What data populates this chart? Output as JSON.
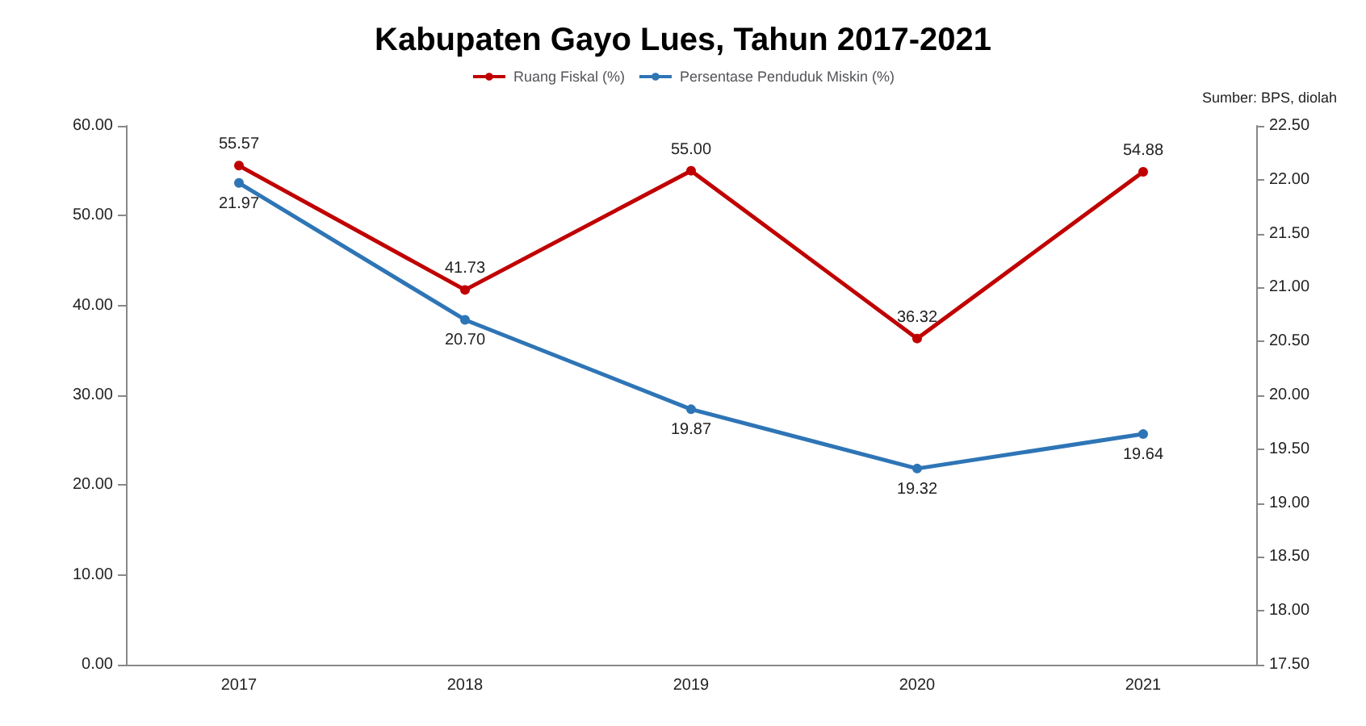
{
  "chart_data": {
    "type": "line",
    "title": "Kabupaten Gayo Lues, Tahun 2017-2021",
    "annotations": [
      "Sumber: BPS, diolah"
    ],
    "categories": [
      "2017",
      "2018",
      "2019",
      "2020",
      "2021"
    ],
    "series": [
      {
        "name": "Ruang Fiskal (%)",
        "color": "#c00000",
        "values": [
          55.57,
          41.73,
          55.0,
          36.32,
          54.88
        ],
        "value_labels": [
          "55.57",
          "41.73",
          "55.00",
          "36.32",
          "54.88"
        ]
      },
      {
        "name": "Persentase Penduduk Miskin (%)",
        "color": "#2e75b6",
        "axis": "y2",
        "values": [
          21.97,
          20.7,
          19.87,
          19.32,
          19.64
        ],
        "value_labels": [
          "21.97",
          "20.70",
          "19.87",
          "19.32",
          "19.64"
        ]
      }
    ],
    "ylim": [
      0,
      60
    ],
    "yticks": [
      {
        "value": 0,
        "label": "0.00"
      },
      {
        "value": 10,
        "label": "10.00"
      },
      {
        "value": 20,
        "label": "20.00"
      },
      {
        "value": 30,
        "label": "30.00"
      },
      {
        "value": 40,
        "label": "40.00"
      },
      {
        "value": 50,
        "label": "50.00"
      },
      {
        "value": 60,
        "label": "60.00"
      }
    ],
    "y2lim": [
      17.5,
      22.5
    ],
    "y2ticks": [
      {
        "value": 17.5,
        "label": "17.50"
      },
      {
        "value": 18,
        "label": "18.00"
      },
      {
        "value": 18.5,
        "label": "18.50"
      },
      {
        "value": 19,
        "label": "19.00"
      },
      {
        "value": 19.5,
        "label": "19.50"
      },
      {
        "value": 20,
        "label": "20.00"
      },
      {
        "value": 20.5,
        "label": "20.50"
      },
      {
        "value": 21,
        "label": "21.00"
      },
      {
        "value": 21.5,
        "label": "21.50"
      },
      {
        "value": 22,
        "label": "22.00"
      },
      {
        "value": 22.5,
        "label": "22.50"
      }
    ],
    "grid": false,
    "legend": "top",
    "marker": "circle",
    "line_style": "solid"
  }
}
